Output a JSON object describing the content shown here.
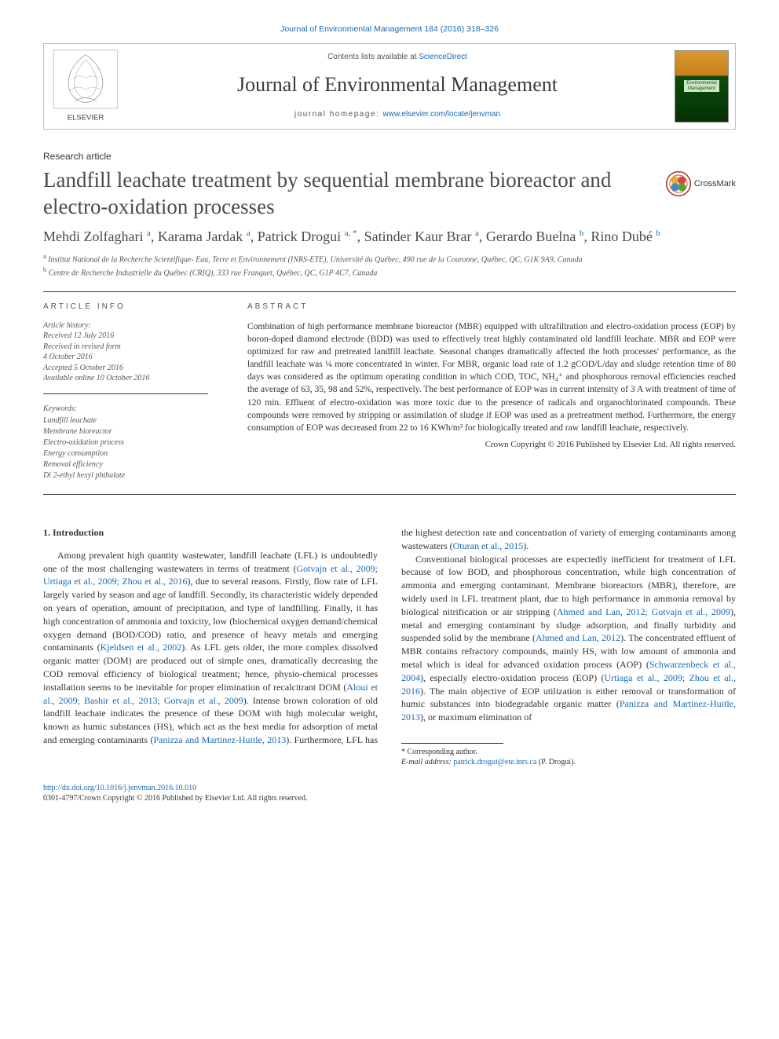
{
  "top_link": "Journal of Environmental Management 184 (2016) 318–326",
  "header": {
    "contents_prefix": "Contents lists available at ",
    "contents_source": "ScienceDirect",
    "journal_name": "Journal of Environmental Management",
    "homepage_prefix": "journal homepage: ",
    "homepage_url": "www.elsevier.com/locate/jenvman",
    "cover_label_line1": "Environmental",
    "cover_label_line2": "Management",
    "publisher": "ELSEVIER"
  },
  "article": {
    "section_label": "Research article",
    "title": "Landfill leachate treatment by sequential membrane bioreactor and electro-oxidation processes",
    "crossmark_label": "CrossMark"
  },
  "authors": [
    {
      "name": "Mehdi Zolfaghari",
      "sup": "a"
    },
    {
      "name": "Karama Jardak",
      "sup": "a"
    },
    {
      "name": "Patrick Drogui",
      "sup": "a, *"
    },
    {
      "name": "Satinder Kaur Brar",
      "sup": "a"
    },
    {
      "name": "Gerardo Buelna",
      "sup": "b"
    },
    {
      "name": "Rino Dubé",
      "sup": "b"
    }
  ],
  "affiliations": [
    {
      "sup": "a",
      "text": "Institut National de la Recherche Scientifique- Eau, Terre et Environnement (INRS-ETE), Université du Québec, 490 rue de la Couronne, Québec, QC, G1K 9A9, Canada"
    },
    {
      "sup": "b",
      "text": "Centre de Recherche Industrielle du Québec (CRIQ), 333 rue Franquet, Québec, QC, G1P 4C7, Canada"
    }
  ],
  "article_info": {
    "heading": "ARTICLE INFO",
    "history_label": "Article history:",
    "history": [
      "Received 12 July 2016",
      "Received in revised form",
      "4 October 2016",
      "Accepted 5 October 2016",
      "Available online 10 October 2016"
    ],
    "keywords_label": "Keywords:",
    "keywords": [
      "Landfill leachate",
      "Membrane bioreactor",
      "Electro-oxidation process",
      "Energy consumption",
      "Removal efficiency",
      "Di 2-ethyl hexyl phthalate"
    ]
  },
  "abstract": {
    "heading": "ABSTRACT",
    "text": "Combination of high performance membrane bioreactor (MBR) equipped with ultrafiltration and electro-oxidation process (EOP) by boron-doped diamond electrode (BDD) was used to effectively treat highly contaminated old landfill leachate. MBR and EOP were optimized for raw and pretreated landfill leachate. Seasonal changes dramatically affected the both processes' performance, as the landfill leachate was ¼ more concentrated in winter. For MBR, organic load rate of 1.2 gCOD/L/day and sludge retention time of 80 days was considered as the optimum operating condition in which COD, TOC, NH₄⁺ and phosphorous removal efficiencies reached the average of 63, 35, 98 and 52%, respectively. The best performance of EOP was in current intensity of 3 A with treatment of time of 120 min. Effluent of electro-oxidation was more toxic due to the presence of radicals and organochlorinated compounds. These compounds were removed by stripping or assimilation of sludge if EOP was used as a pretreatment method. Furthermore, the energy consumption of EOP was decreased from 22 to 16 KWh/m³ for biologically treated and raw landfill leachate, respectively.",
    "copyright": "Crown Copyright © 2016 Published by Elsevier Ltd. All rights reserved."
  },
  "body": {
    "intro_heading": "1. Introduction",
    "p1_a": "Among prevalent high quantity wastewater, landfill leachate (LFL) is undoubtedly one of the most challenging wastewaters in terms of treatment (",
    "p1_link1": "Gotvajn et al., 2009; Urtiaga et al., 2009; Zhou et al., 2016",
    "p1_b": "), due to several reasons. Firstly, flow rate of LFL largely varied by season and age of landfill. Secondly, its characteristic widely depended on years of operation, amount of precipitation, and type of landfilling. Finally, it has high concentration of ammonia and toxicity, low (biochemical oxygen demand/chemical oxygen demand (BOD/COD) ratio, and presence of heavy metals and emerging contaminants (",
    "p1_link2": "Kjeldsen et al., 2002",
    "p1_c": "). As LFL gets older, the more complex dissolved organic matter (DOM) are produced out of simple ones, dramatically decreasing the COD removal efficiency of biological treatment; hence, physio-chemical processes installation seems to be inevitable for proper elimination of recalcitrant DOM (",
    "p1_link3": "Aloui et al., 2009; Bashir et al., 2013; Gotvajn et al., 2009",
    "p1_d": "). Intense brown coloration of old landfill leachate ",
    "p2_a": "indicates the presence of these DOM with high molecular weight, known as humic substances (HS), which act as the best media for adsorption of metal and emerging contaminants (",
    "p2_link1": "Panizza and Martinez-Huitle, 2013",
    "p2_b": "). Furthermore, LFL has the highest detection rate and concentration of variety of emerging contaminants among wastewaters (",
    "p2_link2": "Oturan et al., 2015",
    "p2_c": ").",
    "p3_a": "Conventional biological processes are expectedly inefficient for treatment of LFL because of low BOD, and phosphorous concentration, while high concentration of ammonia and emerging contaminant. Membrane bioreactors (MBR), therefore, are widely used in LFL treatment plant, due to high performance in ammonia removal by biological nitrification or air stripping (",
    "p3_link1": "Ahmed and Lan, 2012; Gotvajn et al., 2009",
    "p3_b": "), metal and emerging contaminant by sludge adsorption, and finally turbidity and suspended solid by the membrane (",
    "p3_link2": "Ahmed and Lan, 2012",
    "p3_c": "). The concentrated effluent of MBR contains refractory compounds, mainly HS, with low amount of ammonia and metal which is ideal for advanced oxidation process (AOP) (",
    "p3_link3": "Schwarzenbeck et al., 2004",
    "p3_d": "), especially electro-oxidation process (EOP) (",
    "p3_link4": "Urtiaga et al., 2009; Zhou et al., 2016",
    "p3_e": "). The main objective of EOP utilization is either removal or transformation of humic substances into biodegradable organic matter (",
    "p3_link5": "Panizza and Martinez-Huitle, 2013",
    "p3_f": "), or maximum elimination of"
  },
  "footnote": {
    "corresponding": "* Corresponding author.",
    "email_label": "E-mail address: ",
    "email": "patrick.drogui@ete.inrs.ca",
    "email_suffix": " (P. Drogui)."
  },
  "doi": {
    "url": "http://dx.doi.org/10.1016/j.jenvman.2016.10.010",
    "issn_line": "0301-4797/Crown Copyright © 2016 Published by Elsevier Ltd. All rights reserved."
  },
  "colors": {
    "link": "#1669b6",
    "text": "#333333",
    "muted": "#555555",
    "border": "#bfbfbf",
    "rule": "#333333"
  }
}
